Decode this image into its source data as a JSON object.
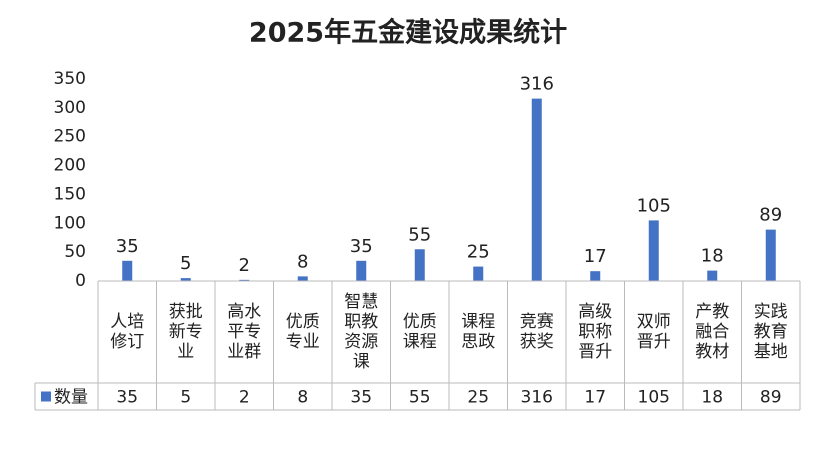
{
  "chart_data": {
    "type": "bar",
    "title": "2025年五金建设成果统计",
    "categories": [
      "人培修订",
      "获批新专业",
      "高水平专业群",
      "优质专业",
      "智慧职教资源课",
      "优质课程",
      "课程思政",
      "竞赛获奖",
      "高级职称晋升",
      "双师晋升",
      "产教融合教材",
      "实践教育基地"
    ],
    "series": [
      {
        "name": "数量",
        "color": "#4472c4",
        "values": [
          35,
          5,
          2,
          8,
          35,
          55,
          25,
          316,
          17,
          105,
          18,
          89
        ]
      }
    ],
    "ylim": [
      0,
      350
    ],
    "yticks": [
      0,
      50,
      100,
      150,
      200,
      250,
      300,
      350
    ],
    "grid": false,
    "legend": "bottom-left",
    "data_table": true
  }
}
